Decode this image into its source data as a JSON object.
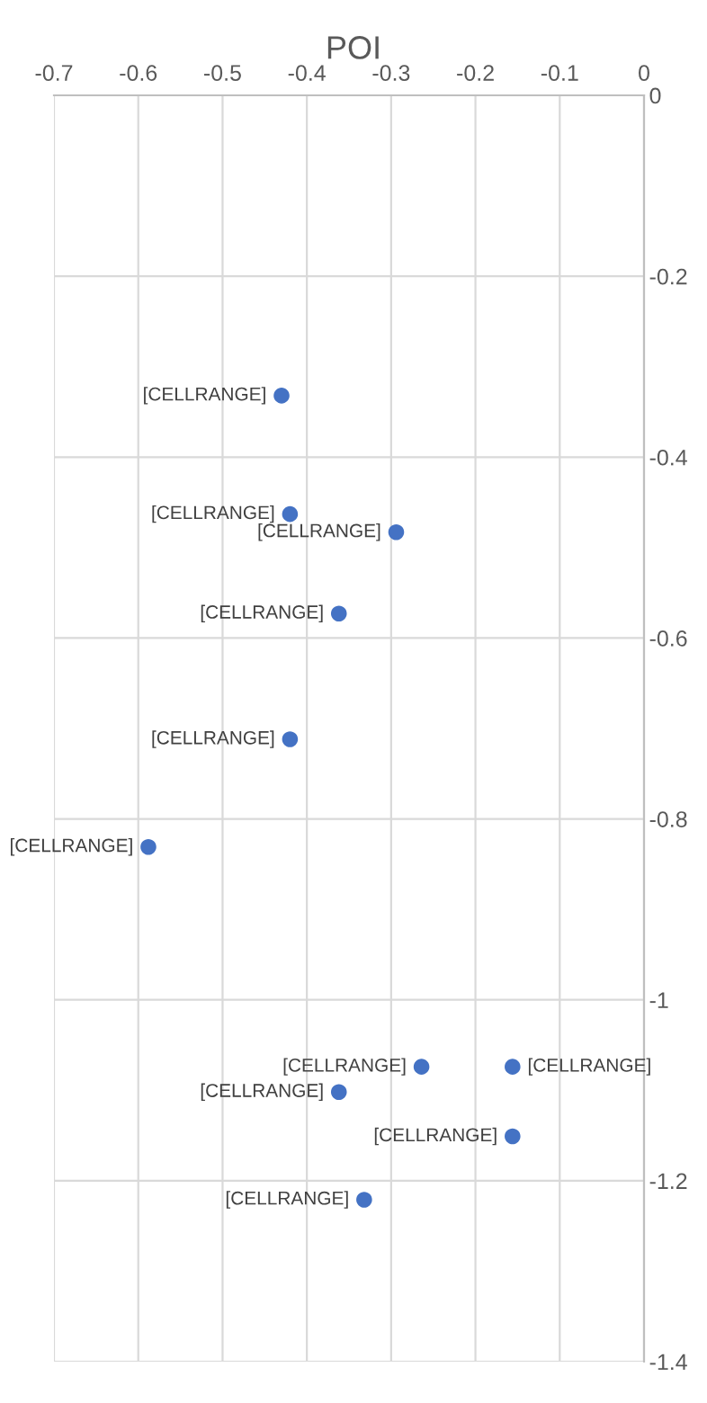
{
  "chart_data": {
    "type": "scatter",
    "title": "POI",
    "series": [
      {
        "color": "#4472c4",
        "x": [
          -0.43,
          -0.42,
          -0.294,
          -0.362,
          -0.42,
          -0.588,
          -0.264,
          -0.156,
          -0.362,
          -0.156,
          -0.332
        ],
        "values": [
          -0.332,
          -0.463,
          -0.483,
          -0.573,
          -0.712,
          -0.831,
          -1.074,
          -1.074,
          -1.102,
          -1.151,
          -1.221
        ]
      }
    ],
    "annotations": [
      {
        "text": "[CELLRANGE]",
        "x": -0.43,
        "y": -0.332
      },
      {
        "text": "[CELLRANGE]",
        "x": -0.42,
        "y": -0.463
      },
      {
        "text": "[CELLRANGE]",
        "x": -0.294,
        "y": -0.483
      },
      {
        "text": "[CELLRANGE]",
        "x": -0.362,
        "y": -0.573
      },
      {
        "text": "[CELLRANGE]",
        "x": -0.42,
        "y": -0.712
      },
      {
        "text": "[CELLRANGE]",
        "x": -0.588,
        "y": -0.831
      },
      {
        "text": "[CELLRANGE]",
        "x": -0.264,
        "y": -1.074
      },
      {
        "text": "[CELLRANGE]",
        "x": -0.156,
        "y": -1.074
      },
      {
        "text": "[CELLRANGE]",
        "x": -0.362,
        "y": -1.102
      },
      {
        "text": "[CELLRANGE]",
        "x": -0.156,
        "y": -1.151
      },
      {
        "text": "[CELLRANGE]",
        "x": -0.332,
        "y": -1.221
      }
    ],
    "xlim": [
      -0.7,
      0
    ],
    "xticks": [
      -0.7,
      -0.6,
      -0.5,
      -0.4,
      -0.3,
      -0.2,
      -0.1,
      0
    ],
    "ylim": [
      -1.4,
      0
    ],
    "yticks": [
      -1.4,
      -1.2,
      -1,
      -0.8,
      -0.6,
      -0.4,
      -0.2,
      0
    ],
    "grid": true,
    "marker": "circle",
    "legend": false
  }
}
